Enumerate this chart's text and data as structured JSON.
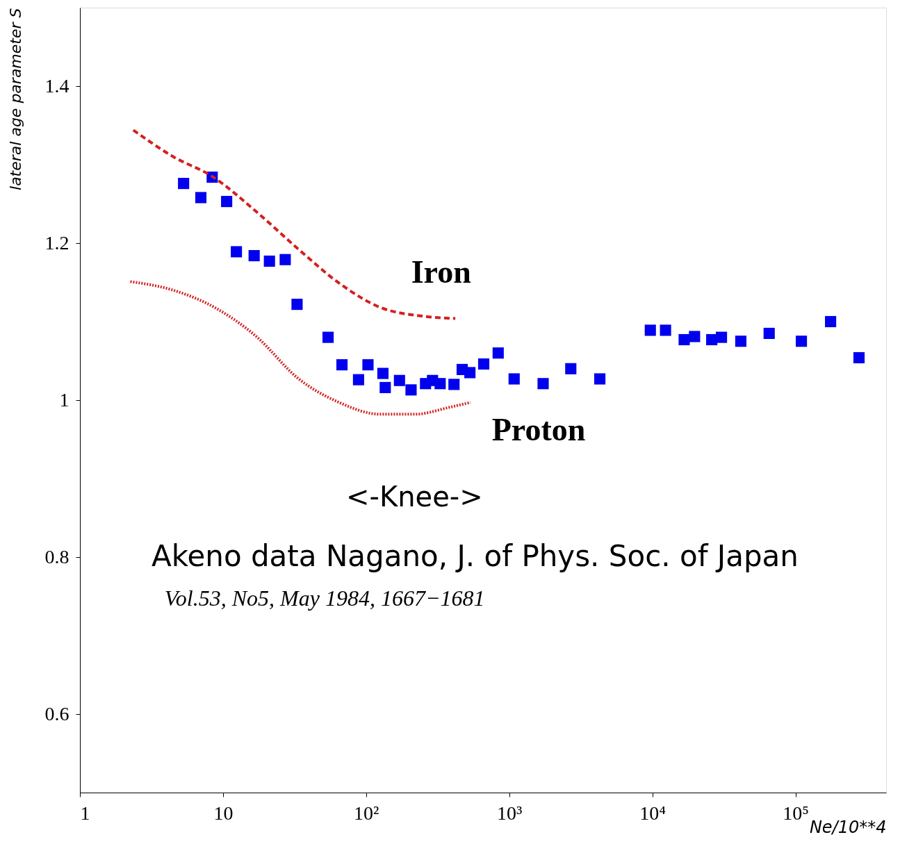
{
  "chart_data": {
    "type": "scatter",
    "xlabel": "Ne/10**4",
    "ylabel": "lateral age parameter S",
    "log": "x",
    "grid": false,
    "xlim": [
      1,
      430000
    ],
    "ylim": [
      0.5,
      1.5
    ],
    "xticks": [
      1,
      10,
      {
        "value": 100,
        "label": "10²"
      },
      {
        "value": 1000,
        "label": "10³"
      },
      {
        "value": 10000,
        "label": "10⁴"
      },
      {
        "value": 100000,
        "label": "10⁵"
      }
    ],
    "yticks": [
      0.6,
      0.8,
      1,
      1.2,
      1.4
    ],
    "series": [
      {
        "marker": "square",
        "color": "#0000ee",
        "x": [
          5.3,
          7.0,
          8.4,
          10.6,
          12.4,
          16.5,
          21.1,
          27.2,
          32.9,
          54.2,
          67.8,
          88.5,
          103,
          131,
          136,
          171,
          206,
          260,
          291,
          329,
          411,
          469,
          531,
          663,
          837,
          1082,
          1725,
          2692,
          4295,
          9680,
          12360,
          16690,
          19720,
          26000,
          30400,
          41500,
          65500,
          110000,
          176000,
          278000
        ],
        "values": [
          1.276,
          1.258,
          1.284,
          1.253,
          1.189,
          1.184,
          1.177,
          1.179,
          1.122,
          1.08,
          1.045,
          1.026,
          1.045,
          1.034,
          1.016,
          1.025,
          1.013,
          1.021,
          1.025,
          1.021,
          1.02,
          1.039,
          1.035,
          1.046,
          1.06,
          1.027,
          1.021,
          1.04,
          1.027,
          1.089,
          1.089,
          1.077,
          1.081,
          1.077,
          1.08,
          1.075,
          1.085,
          1.075,
          1.1,
          1.054
        ]
      },
      {
        "type": "line",
        "color": "#d42020",
        "line_style": "dashed",
        "x": [
          2.36,
          4.5,
          8.4,
          17.1,
          33.3,
          64.8,
          126,
          246,
          420
        ],
        "values": [
          1.344,
          1.31,
          1.285,
          1.24,
          1.193,
          1.149,
          1.118,
          1.107,
          1.104
        ]
      },
      {
        "type": "line",
        "color": "#d42020",
        "line_style": "dotted",
        "x": [
          2.25,
          4.49,
          8.75,
          17.1,
          33.3,
          64.8,
          126,
          220,
          385,
          536
        ],
        "values": [
          1.151,
          1.14,
          1.118,
          1.081,
          1.028,
          0.997,
          0.982,
          0.982,
          0.991,
          0.997
        ]
      }
    ],
    "annotations": [
      "Iron",
      "Proton",
      "<-Knee->",
      "Akeno data Nagano, J. of Phys. Soc. of Japan",
      "Vol.53, No5, May 1984, 1667−1681"
    ]
  }
}
